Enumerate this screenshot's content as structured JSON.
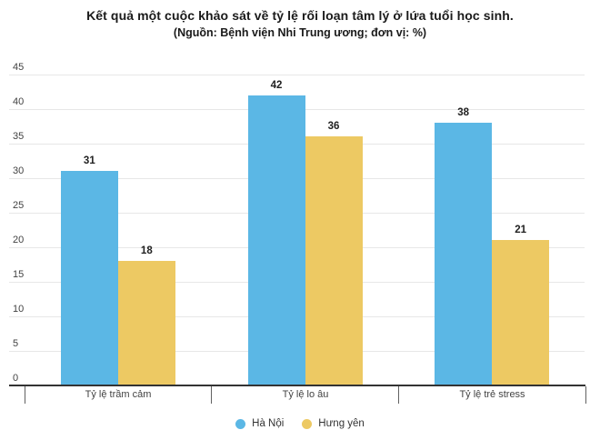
{
  "title": "Kết quả một cuộc khảo sát về tỷ lệ rối loạn tâm lý ở lứa tuổi học sinh.",
  "subtitle": "(Nguồn: Bệnh viện Nhi Trung ương; đơn vị: %)",
  "colors": {
    "series_hanoi": "#5bb7e5",
    "series_hungyen": "#edc963",
    "gridline": "#e7e7e7",
    "axis_line": "#333333",
    "tick": "#616161",
    "axis_text": "#424242",
    "data_label": "#212121",
    "title_text": "#1a1a1a"
  },
  "chart_data": {
    "type": "bar",
    "title": "Kết quả một cuộc khảo sát về tỷ lệ rối loạn tâm lý ở lứa tuổi học sinh.",
    "subtitle": "(Nguồn: Bệnh viện Nhi Trung ương; đơn vị: %)",
    "categories": [
      "Tỷ lệ trầm cảm",
      "Tỷ lệ lo âu",
      "Tỷ lệ trẻ stress"
    ],
    "series": [
      {
        "name": "Hà Nội",
        "color": "#5bb7e5",
        "values": [
          31,
          42,
          38
        ]
      },
      {
        "name": "Hưng yên",
        "color": "#edc963",
        "values": [
          18,
          36,
          21
        ]
      }
    ],
    "ylim": [
      0,
      45
    ],
    "ytick_step": 5,
    "yticks": [
      0,
      5,
      10,
      15,
      20,
      25,
      30,
      35,
      40,
      45
    ],
    "xlabel": "",
    "ylabel": "",
    "unit": "%",
    "grid": true,
    "data_labels": true,
    "legend_position": "bottom"
  }
}
